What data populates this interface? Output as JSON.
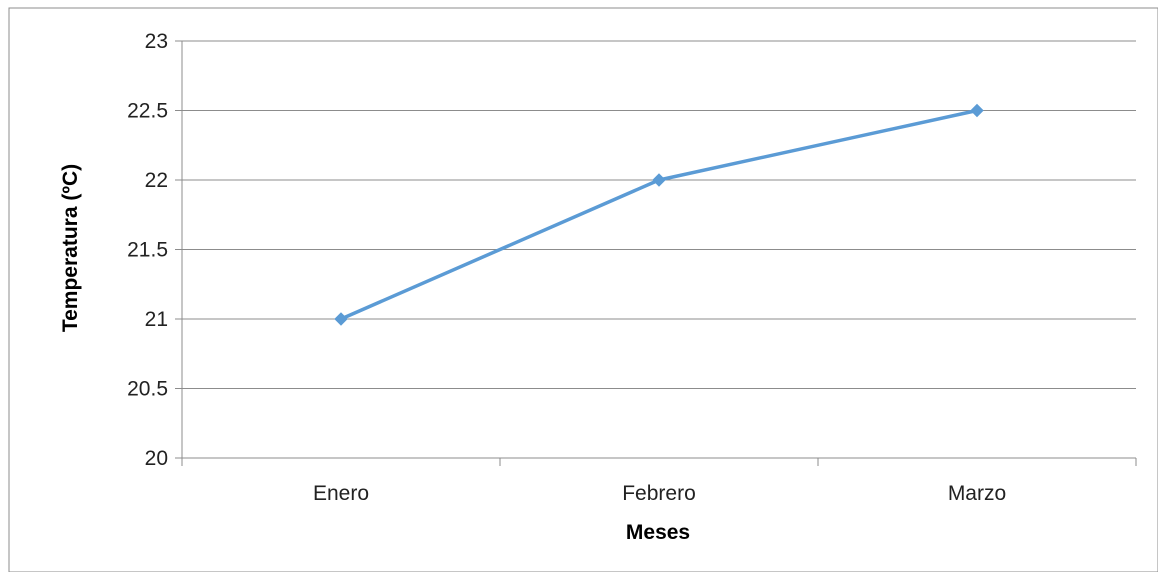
{
  "chart_data": {
    "type": "line",
    "title": "",
    "categories": [
      "Enero",
      "Febrero",
      "Marzo"
    ],
    "series": [
      {
        "values": [
          21,
          22,
          22.5
        ],
        "color": "#5b9bd5"
      }
    ],
    "xlabel": "Meses",
    "ylabel": "Temperatura (ºC)",
    "ylim": [
      20,
      23
    ],
    "yticks": [
      20,
      20.5,
      21,
      21.5,
      22,
      22.5,
      23
    ],
    "grid": true,
    "legend": "none",
    "colors": {
      "series": "#5b9bd5",
      "grid": "#8c8c8c",
      "axis": "#8c8c8c"
    }
  }
}
